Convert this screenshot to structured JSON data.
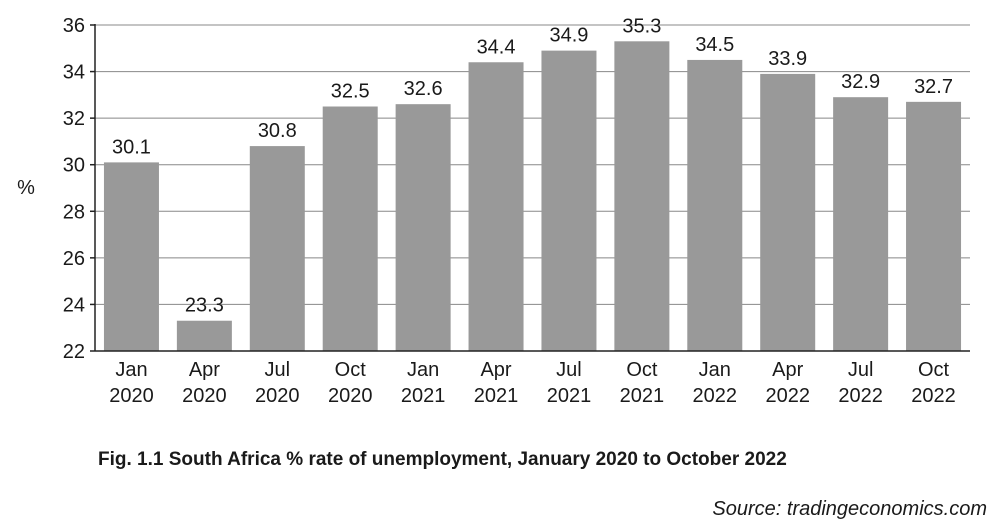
{
  "chart_data": {
    "type": "bar",
    "ylabel": "%",
    "ylim": [
      22,
      36
    ],
    "yticks": [
      "22",
      "24",
      "26",
      "28",
      "30",
      "32",
      "34",
      "36"
    ],
    "grid": true,
    "categories": [
      [
        "Jan",
        "2020"
      ],
      [
        "Apr",
        "2020"
      ],
      [
        "Jul",
        "2020"
      ],
      [
        "Oct",
        "2020"
      ],
      [
        "Jan",
        "2021"
      ],
      [
        "Apr",
        "2021"
      ],
      [
        "Jul",
        "2021"
      ],
      [
        "Oct",
        "2021"
      ],
      [
        "Jan",
        "2022"
      ],
      [
        "Apr",
        "2022"
      ],
      [
        "Jul",
        "2022"
      ],
      [
        "Oct",
        "2022"
      ]
    ],
    "values": [
      30.1,
      23.3,
      30.8,
      32.5,
      32.6,
      34.4,
      34.9,
      35.3,
      34.5,
      33.9,
      32.9,
      32.7
    ],
    "value_labels": [
      "30.1",
      "23.3",
      "30.8",
      "32.5",
      "32.6",
      "34.4",
      "34.9",
      "35.3",
      "34.5",
      "33.9",
      "32.9",
      "32.7"
    ],
    "bar_color": "#999999",
    "grid_color": "#888888"
  },
  "caption": "Fig. 1.1 South Africa % rate of unemployment, January 2020 to October 2022",
  "source": "Source: tradingeconomics.com"
}
